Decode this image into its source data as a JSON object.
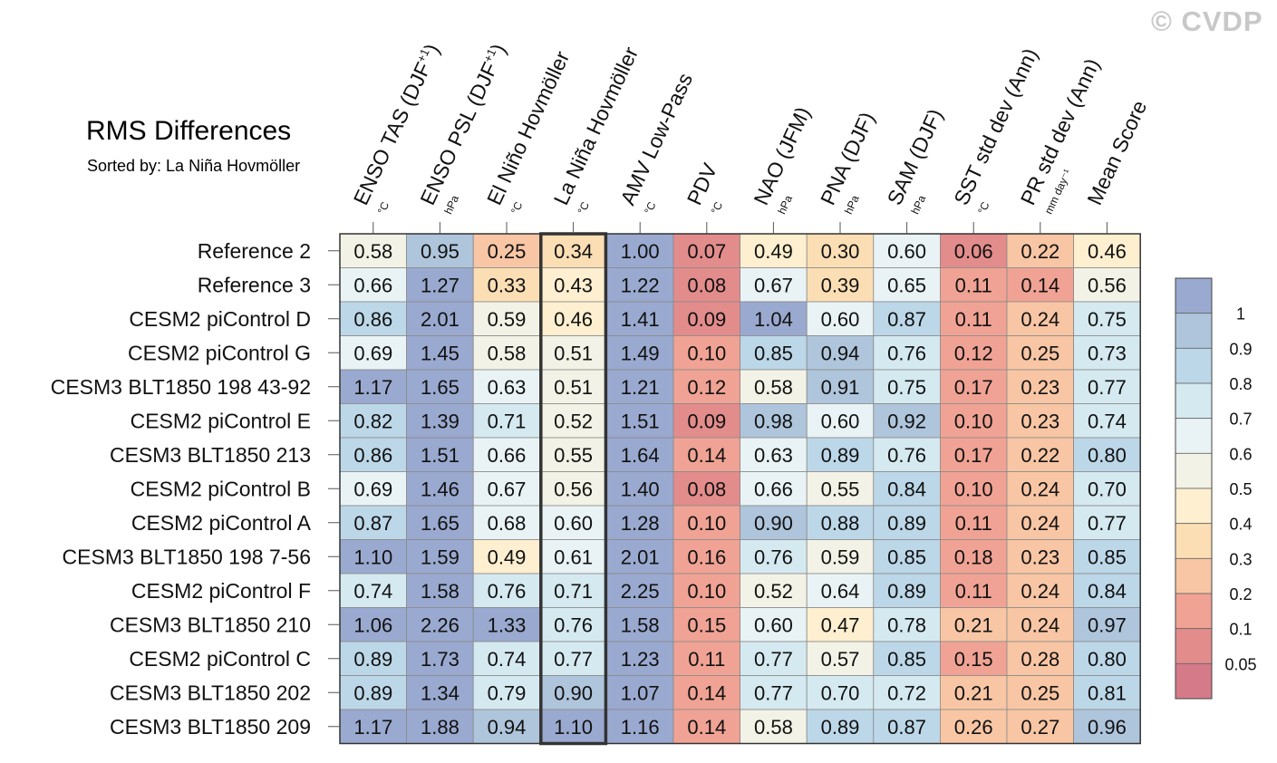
{
  "watermark": "© CVDP",
  "chart_data": {
    "type": "heatmap",
    "title": "RMS Differences",
    "subtitle": "Sorted by: La Niña Hovmöller",
    "sorted_by": "La Niña Hovmöller",
    "columns": [
      {
        "name": "ENSO TAS (DJF",
        "sup": "+1",
        "suffix": ")",
        "unit": "°C"
      },
      {
        "name": "ENSO PSL (DJF",
        "sup": "+1",
        "suffix": ")",
        "unit": "hPa"
      },
      {
        "name": "El Niño Hovmöller",
        "sup": "",
        "suffix": "",
        "unit": "°C"
      },
      {
        "name": "La Niña Hovmöller",
        "sup": "",
        "suffix": "",
        "unit": "°C"
      },
      {
        "name": "AMV Low-Pass",
        "sup": "",
        "suffix": "",
        "unit": "°C"
      },
      {
        "name": "PDV",
        "sup": "",
        "suffix": "",
        "unit": "°C"
      },
      {
        "name": "NAO (JFM)",
        "sup": "",
        "suffix": "",
        "unit": "hPa"
      },
      {
        "name": "PNA (DJF)",
        "sup": "",
        "suffix": "",
        "unit": "hPa"
      },
      {
        "name": "SAM (DJF)",
        "sup": "",
        "suffix": "",
        "unit": "hPa"
      },
      {
        "name": "SST std dev (Ann)",
        "sup": "",
        "suffix": "",
        "unit": "°C"
      },
      {
        "name": "PR std dev (Ann)",
        "sup": "",
        "suffix": "",
        "unit": "mm day⁻¹"
      },
      {
        "name": "Mean Score",
        "sup": "",
        "suffix": "",
        "unit": ""
      }
    ],
    "rows": [
      "Reference 2",
      "Reference 3",
      "CESM2 piControl D",
      "CESM2 piControl G",
      "CESM3 BLT1850 198 43-92",
      "CESM2 piControl E",
      "CESM3 BLT1850 213",
      "CESM2 piControl B",
      "CESM2 piControl A",
      "CESM3 BLT1850 198 7-56",
      "CESM2 piControl F",
      "CESM3 BLT1850 210",
      "CESM2 piControl C",
      "CESM3 BLT1850 202",
      "CESM3 BLT1850 209"
    ],
    "values": [
      [
        "0.58",
        "0.95",
        "0.25",
        "0.34",
        "1.00",
        "0.07",
        "0.49",
        "0.30",
        "0.60",
        "0.06",
        "0.22",
        "0.46"
      ],
      [
        "0.66",
        "1.27",
        "0.33",
        "0.43",
        "1.22",
        "0.08",
        "0.67",
        "0.39",
        "0.65",
        "0.11",
        "0.14",
        "0.56"
      ],
      [
        "0.86",
        "2.01",
        "0.59",
        "0.46",
        "1.41",
        "0.09",
        "1.04",
        "0.60",
        "0.87",
        "0.11",
        "0.24",
        "0.75"
      ],
      [
        "0.69",
        "1.45",
        "0.58",
        "0.51",
        "1.49",
        "0.10",
        "0.85",
        "0.94",
        "0.76",
        "0.12",
        "0.25",
        "0.73"
      ],
      [
        "1.17",
        "1.65",
        "0.63",
        "0.51",
        "1.21",
        "0.12",
        "0.58",
        "0.91",
        "0.75",
        "0.17",
        "0.23",
        "0.77"
      ],
      [
        "0.82",
        "1.39",
        "0.71",
        "0.52",
        "1.51",
        "0.09",
        "0.98",
        "0.60",
        "0.92",
        "0.10",
        "0.23",
        "0.74"
      ],
      [
        "0.86",
        "1.51",
        "0.66",
        "0.55",
        "1.64",
        "0.14",
        "0.63",
        "0.89",
        "0.76",
        "0.17",
        "0.22",
        "0.80"
      ],
      [
        "0.69",
        "1.46",
        "0.67",
        "0.56",
        "1.40",
        "0.08",
        "0.66",
        "0.55",
        "0.84",
        "0.10",
        "0.24",
        "0.70"
      ],
      [
        "0.87",
        "1.65",
        "0.68",
        "0.60",
        "1.28",
        "0.10",
        "0.90",
        "0.88",
        "0.89",
        "0.11",
        "0.24",
        "0.77"
      ],
      [
        "1.10",
        "1.59",
        "0.49",
        "0.61",
        "2.01",
        "0.16",
        "0.76",
        "0.59",
        "0.85",
        "0.18",
        "0.23",
        "0.85"
      ],
      [
        "0.74",
        "1.58",
        "0.76",
        "0.71",
        "2.25",
        "0.10",
        "0.52",
        "0.64",
        "0.89",
        "0.11",
        "0.24",
        "0.84"
      ],
      [
        "1.06",
        "2.26",
        "1.33",
        "0.76",
        "1.58",
        "0.15",
        "0.60",
        "0.47",
        "0.78",
        "0.21",
        "0.24",
        "0.97"
      ],
      [
        "0.89",
        "1.73",
        "0.74",
        "0.77",
        "1.23",
        "0.11",
        "0.77",
        "0.57",
        "0.85",
        "0.15",
        "0.28",
        "0.80"
      ],
      [
        "0.89",
        "1.34",
        "0.79",
        "0.90",
        "1.07",
        "0.14",
        "0.77",
        "0.70",
        "0.72",
        "0.21",
        "0.25",
        "0.81"
      ],
      [
        "1.17",
        "1.88",
        "0.94",
        "1.10",
        "1.16",
        "0.14",
        "0.58",
        "0.89",
        "0.87",
        "0.26",
        "0.27",
        "0.96"
      ]
    ],
    "colorbar": {
      "levels": [
        "1",
        "0.9",
        "0.8",
        "0.7",
        "0.6",
        "0.5",
        "0.4",
        "0.3",
        "0.2",
        "0.1",
        "0.05"
      ],
      "colors": [
        "#9aa9cf",
        "#afc5dc",
        "#bcd7e8",
        "#d5e9f0",
        "#e9f3f5",
        "#f3f2e6",
        "#fdefcf",
        "#fbdeb4",
        "#f8c6a4",
        "#f0a394",
        "#e38c8c",
        "#d47a89"
      ]
    },
    "highlight_column": "La Niña Hovmöller"
  }
}
